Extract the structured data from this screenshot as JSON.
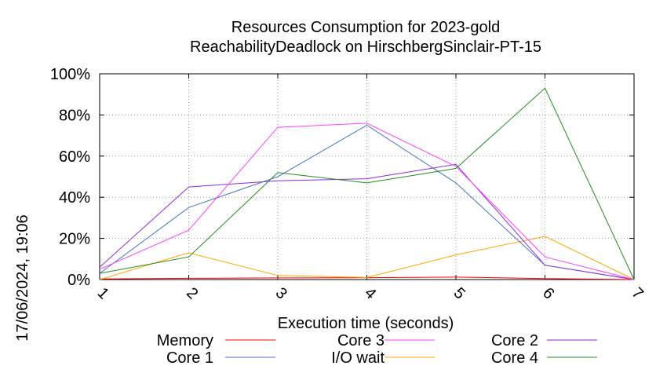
{
  "chart_data": {
    "type": "line",
    "title": [
      "Resources Consumption for 2023-gold",
      "ReachabilityDeadlock on HirschbergSinclair-PT-15"
    ],
    "xlabel": "Execution time (seconds)",
    "ylabel": "",
    "side_label": "17/06/2024, 19:06",
    "xlim": [
      1,
      7
    ],
    "ylim": [
      0,
      100
    ],
    "x_ticks": [
      1,
      2,
      3,
      4,
      5,
      6,
      7
    ],
    "y_ticks": [
      {
        "value": 0,
        "label": "0%"
      },
      {
        "value": 20,
        "label": "20%"
      },
      {
        "value": 40,
        "label": "40%"
      },
      {
        "value": 60,
        "label": "60%"
      },
      {
        "value": 80,
        "label": "80%"
      },
      {
        "value": 100,
        "label": "100%"
      }
    ],
    "grid": true,
    "legend_position": "bottom",
    "series": [
      {
        "name": "Memory",
        "color": "#ff0000",
        "x": [
          1,
          2,
          3,
          4,
          5,
          6,
          7
        ],
        "values": [
          0.3,
          0.6,
          0.8,
          0.9,
          1.2,
          0.5,
          0
        ]
      },
      {
        "name": "Core 1",
        "color": "#4472c4",
        "x": [
          1,
          2,
          3,
          4,
          5,
          6,
          7
        ],
        "values": [
          3,
          35,
          50,
          75,
          47,
          7,
          0
        ]
      },
      {
        "name": "Core 3",
        "color": "#ff40ff",
        "x": [
          1,
          2,
          3,
          4,
          5,
          6,
          7
        ],
        "values": [
          5,
          24,
          74,
          76,
          55,
          11,
          0
        ]
      },
      {
        "name": "I/O wait",
        "color": "#ffa500",
        "x": [
          1,
          2,
          3,
          4,
          5,
          6,
          7
        ],
        "values": [
          0,
          13,
          2,
          1,
          12,
          21,
          0
        ]
      },
      {
        "name": "Core 2",
        "color": "#8a2be2",
        "x": [
          1,
          2,
          3,
          4,
          5,
          6,
          7
        ],
        "values": [
          6,
          45,
          48,
          49,
          56,
          7,
          0
        ]
      },
      {
        "name": "Core 4",
        "color": "#228b22",
        "x": [
          1,
          2,
          3,
          4,
          5,
          6,
          7
        ],
        "values": [
          3,
          11,
          52,
          47,
          54,
          93,
          0
        ]
      }
    ]
  }
}
